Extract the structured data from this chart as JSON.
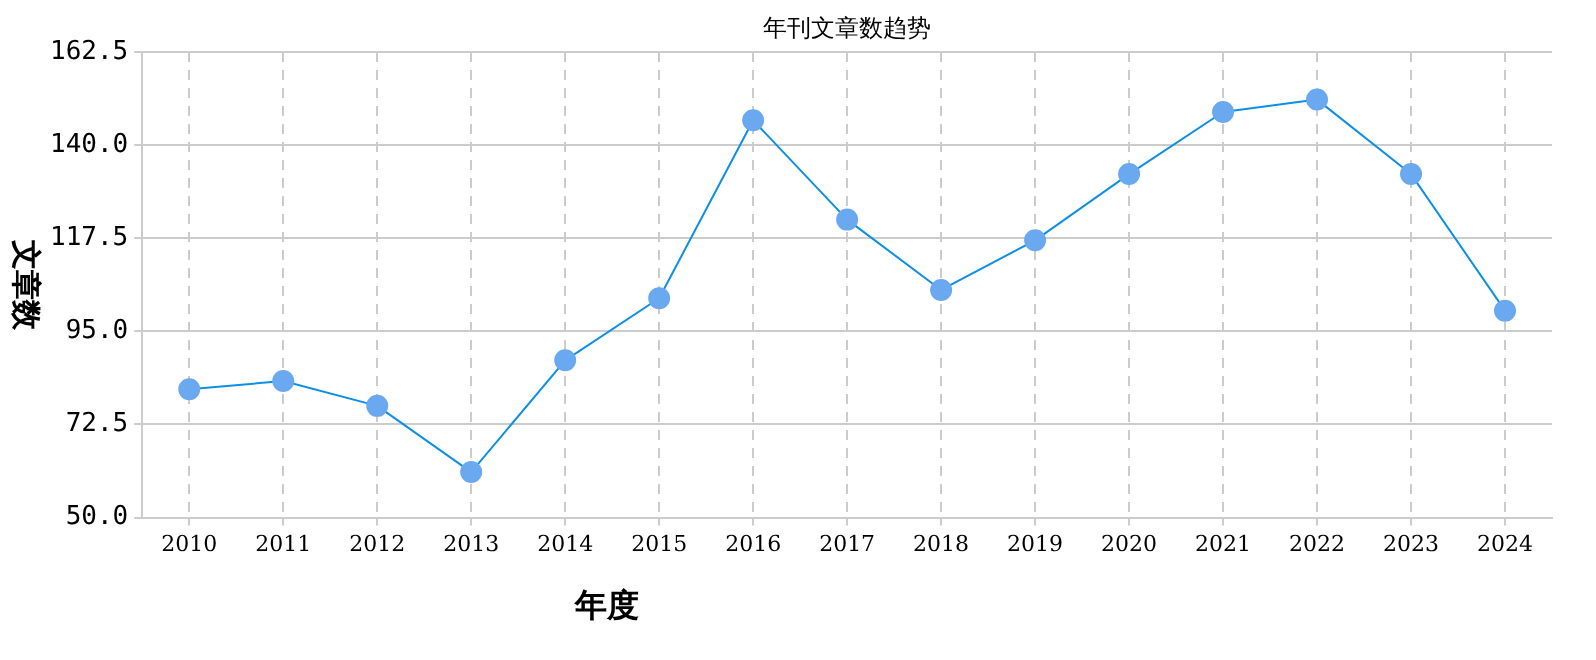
{
  "chart_data": {
    "type": "line",
    "title": "年刊文章数趋势",
    "xlabel": "年度",
    "ylabel": "文章数",
    "categories": [
      "2010",
      "2011",
      "2012",
      "2013",
      "2014",
      "2015",
      "2016",
      "2017",
      "2018",
      "2019",
      "2020",
      "2021",
      "2022",
      "2023",
      "2024"
    ],
    "series": [
      {
        "color": "#0d8fe6",
        "values": [
          81,
          83,
          77,
          61,
          88,
          103,
          146,
          122,
          105,
          117,
          133,
          148,
          151,
          133,
          100
        ]
      }
    ],
    "ylim": [
      50,
      162.5
    ],
    "yticks": [
      {
        "value": 50,
        "label": "50.0"
      },
      {
        "value": 72.5,
        "label": "72.5"
      },
      {
        "value": 95,
        "label": "95.0"
      },
      {
        "value": 117.5,
        "label": "117.5"
      },
      {
        "value": 140,
        "label": "140.0"
      },
      {
        "value": 162.5,
        "label": "162.5"
      }
    ],
    "grid": true,
    "legend": false,
    "marker": "circle",
    "line_style": "solid"
  }
}
